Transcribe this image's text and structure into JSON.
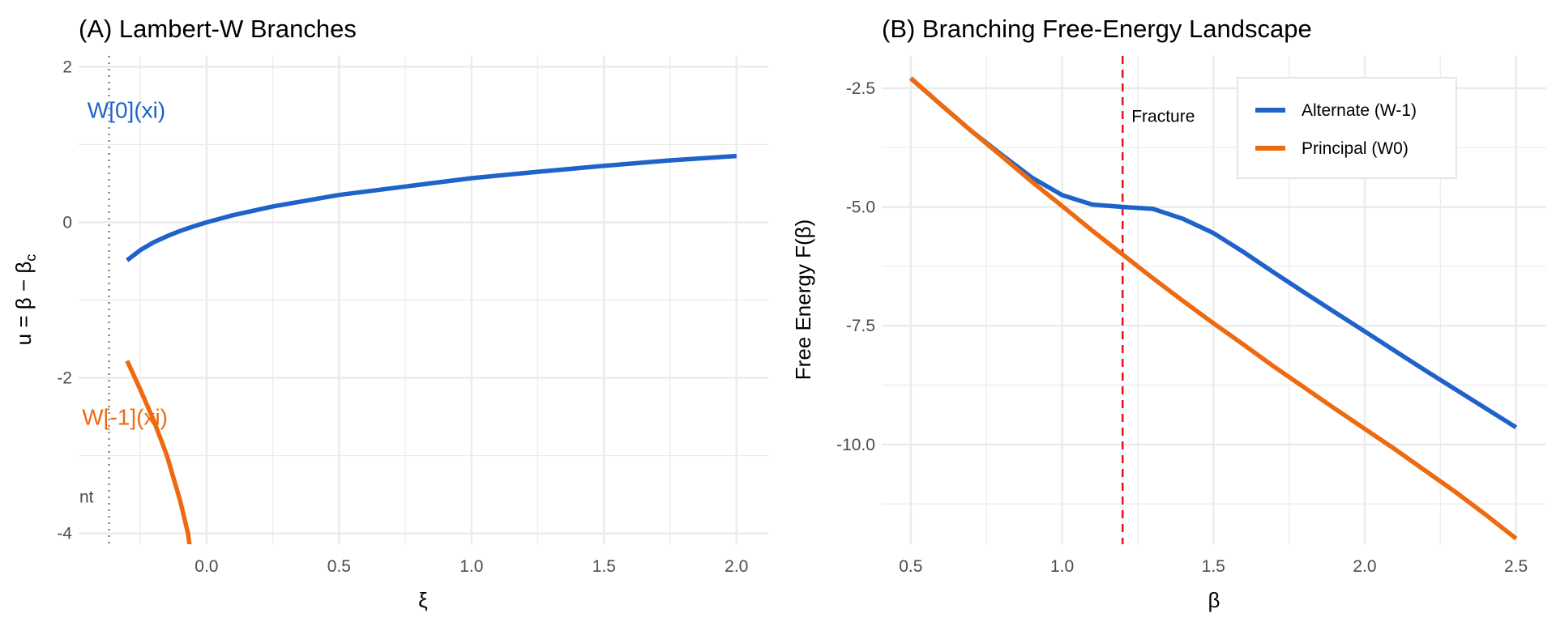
{
  "chart_data": [
    {
      "type": "line",
      "title": "(A) Lambert-W Branches",
      "xlabel": "ξ",
      "ylabel": "u = β − βc",
      "xlim": [
        -0.483,
        2.12
      ],
      "ylim": [
        -4.14,
        2.14
      ],
      "grid": true,
      "x_ticks": [
        0.0,
        0.5,
        1.0,
        1.5,
        2.0
      ],
      "x_tick_labels": [
        "0.0",
        "0.5",
        "1.0",
        "1.5",
        "2.0"
      ],
      "y_ticks": [
        2,
        0,
        -2,
        -4
      ],
      "y_tick_labels": [
        "2",
        "0",
        "-2",
        "-4"
      ],
      "vline": {
        "x": -0.3679,
        "style": "dotted",
        "color": "#888888"
      },
      "series": [
        {
          "color": "#1f62c9",
          "x": [
            -0.3,
            -0.25,
            -0.2,
            -0.15,
            -0.1,
            -0.05,
            0,
            0.1,
            0.25,
            0.5,
            0.75,
            1.0,
            1.25,
            1.5,
            1.75,
            2.0
          ],
          "y": [
            -0.489,
            -0.357,
            -0.259,
            -0.179,
            -0.112,
            -0.053,
            0,
            0.0913,
            0.2039,
            0.3517,
            0.46,
            0.5671,
            0.6492,
            0.7259,
            0.7961,
            0.8526
          ]
        },
        {
          "color": "#ee6a10",
          "x": [
            -0.3,
            -0.25,
            -0.2,
            -0.15,
            -0.1,
            -0.07,
            -0.06,
            -0.055
          ],
          "y": [
            -1.781,
            -2.153,
            -2.543,
            -2.998,
            -3.577,
            -4.0,
            -4.26,
            -4.38
          ]
        }
      ],
      "annotations": [
        {
          "text": "W[0](xi)",
          "x": -0.45,
          "y": 1.45,
          "color": "#1f62c9"
        },
        {
          "text": "W[-1](xi)",
          "x": -0.47,
          "y": -2.5,
          "color": "#ee6a10"
        },
        {
          "text": "nt",
          "x": -0.48,
          "y": -3.5,
          "color": "#4d4d4d"
        }
      ]
    },
    {
      "type": "line",
      "title": "(B) Branching Free-Energy Landscape",
      "xlabel": "β",
      "ylabel": "Free Energy F(β)",
      "xlim": [
        0.404,
        2.6
      ],
      "ylim": [
        -12.1,
        -1.82
      ],
      "grid": true,
      "x_ticks": [
        0.5,
        1.0,
        1.5,
        2.0,
        2.5
      ],
      "x_tick_labels": [
        "0.5",
        "1.0",
        "1.5",
        "2.0",
        "2.5"
      ],
      "y_ticks": [
        -2.5,
        -5.0,
        -7.5,
        -10.0
      ],
      "y_tick_labels": [
        "-2.5",
        "-5.0",
        "-7.5",
        "-10.0"
      ],
      "vline": {
        "x": 1.2,
        "style": "dashed",
        "color": "#e8121b",
        "label": "Fracture"
      },
      "legend": {
        "position": "top-right",
        "entries": [
          "Alternate (W-1)",
          "Principal (W0)"
        ]
      },
      "series": [
        {
          "name": "Alternate (W-1)",
          "color": "#1f62c9",
          "x": [
            0.5,
            0.6,
            0.7,
            0.8,
            0.9,
            1.0,
            1.1,
            1.2,
            1.3,
            1.4,
            1.5,
            1.6,
            1.7,
            1.8,
            1.9,
            2.0,
            2.1,
            2.2,
            2.3,
            2.4,
            2.5
          ],
          "y": [
            -2.29,
            -2.85,
            -3.4,
            -3.9,
            -4.38,
            -4.75,
            -4.95,
            -5.0,
            -5.04,
            -5.25,
            -5.55,
            -5.95,
            -6.38,
            -6.8,
            -7.21,
            -7.62,
            -8.03,
            -8.44,
            -8.84,
            -9.24,
            -9.64
          ]
        },
        {
          "name": "Principal (W0)",
          "color": "#ee6a10",
          "x": [
            0.5,
            0.6,
            0.7,
            0.8,
            0.9,
            1.0,
            1.1,
            1.2,
            1.3,
            1.4,
            1.5,
            1.6,
            1.7,
            1.8,
            1.9,
            2.0,
            2.1,
            2.2,
            2.3,
            2.4,
            2.5
          ],
          "y": [
            -2.29,
            -2.85,
            -3.4,
            -3.93,
            -4.47,
            -4.98,
            -5.5,
            -6.0,
            -6.5,
            -6.98,
            -7.45,
            -7.9,
            -8.36,
            -8.8,
            -9.24,
            -9.67,
            -10.1,
            -10.55,
            -11.0,
            -11.48,
            -11.98
          ]
        }
      ]
    }
  ]
}
